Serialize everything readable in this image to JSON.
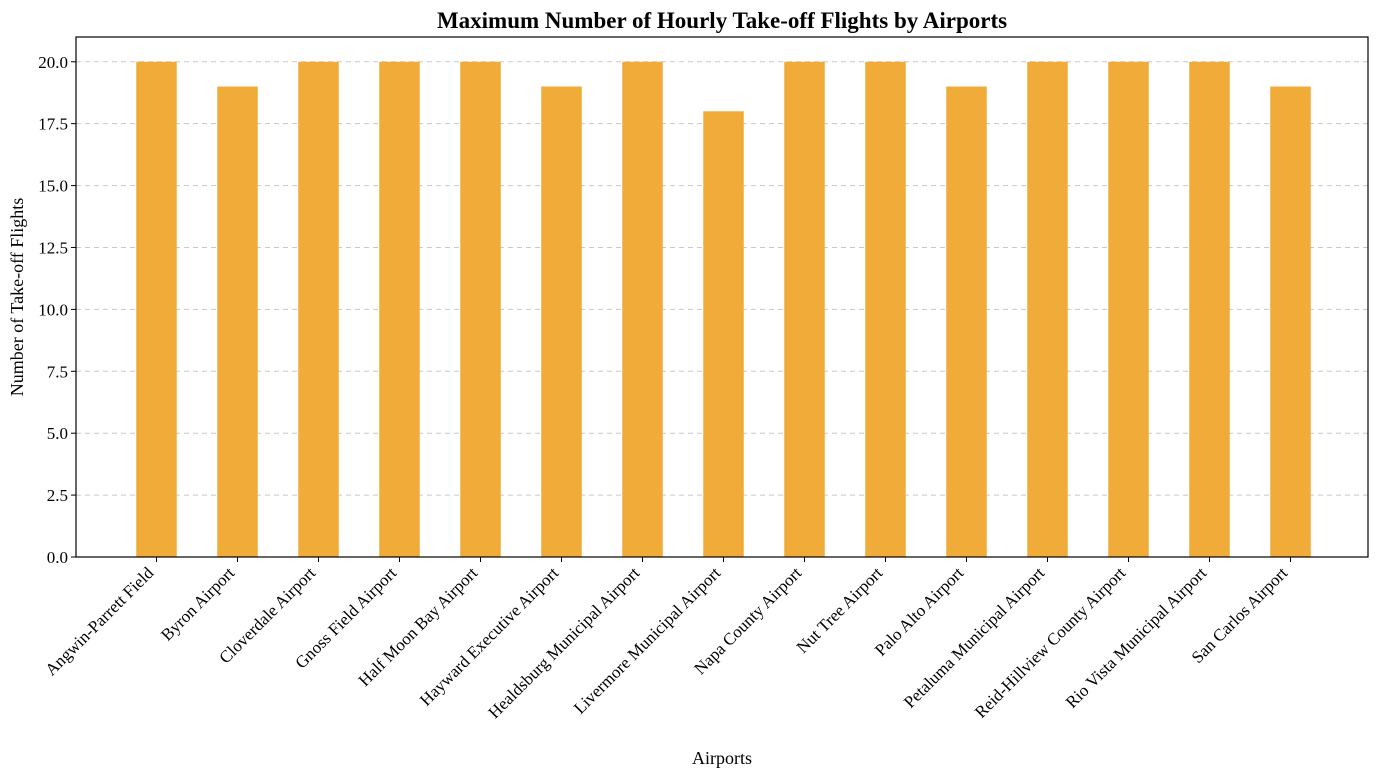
{
  "chart_data": {
    "type": "bar",
    "title": "Maximum Number of Hourly Take-off Flights by Airports",
    "xlabel": "Airports",
    "ylabel": "Number of Take-off Flights",
    "categories": [
      "Angwin-Parrett Field",
      "Byron Airport",
      "Cloverdale Airport",
      "Gnoss Field Airport",
      "Half Moon Bay Airport",
      "Hayward Executive Airport",
      "Healdsburg Municipal Airport",
      "Livermore Municipal Airport",
      "Napa County Airport",
      "Nut Tree Airport",
      "Palo Alto Airport",
      "Petaluma Municipal Airport",
      "Reid-Hillview County Airport",
      "Rio Vista Municipal Airport",
      "San Carlos Airport"
    ],
    "values": [
      20,
      19,
      20,
      20,
      20,
      19,
      20,
      18,
      20,
      20,
      19,
      20,
      20,
      20,
      19
    ],
    "ylim": [
      0,
      21
    ],
    "yticks": [
      "0.0",
      "2.5",
      "5.0",
      "7.5",
      "10.0",
      "12.5",
      "15.0",
      "17.5",
      "20.0"
    ],
    "grid": "y-dashed",
    "bar_color": "#f0ab38",
    "grid_color": "#c8c8c8"
  }
}
